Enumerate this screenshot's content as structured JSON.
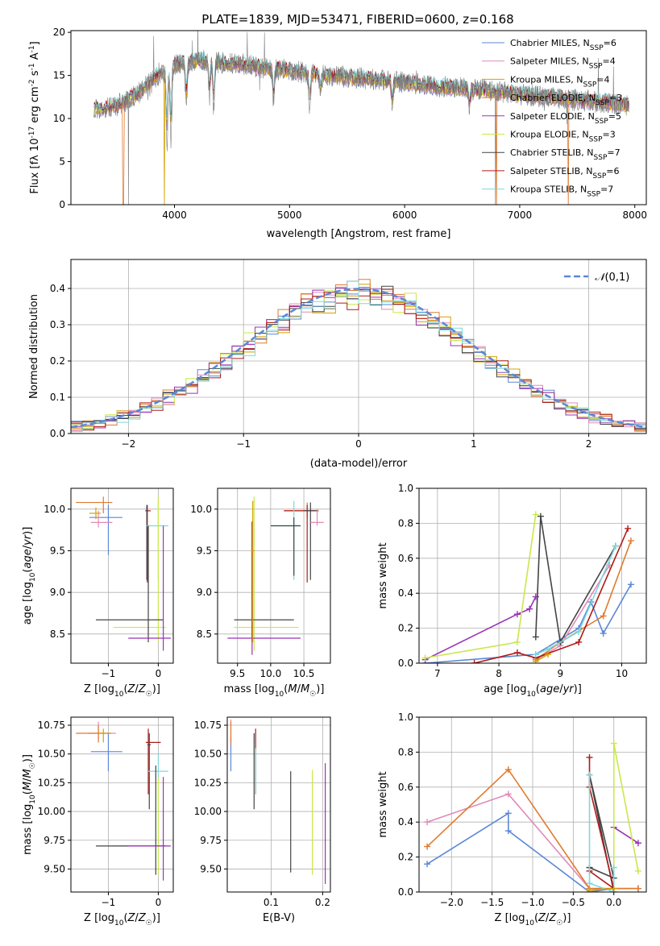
{
  "figure": {
    "title": "PLATE=1839, MJD=53471, FIBERID=0600, z=0.168"
  },
  "colors": {
    "chabrier_miles": "#5b87d6",
    "salpeter_miles": "#e08ab8",
    "kroupa_miles": "#d4a100",
    "chabrier_elodie": "#e07a2e",
    "salpeter_elodie": "#9a32b8",
    "kroupa_elodie": "#c8e84a",
    "chabrier_stelib": "#444444",
    "salpeter_stelib": "#b01a1a",
    "kroupa_stelib": "#7ed8dc",
    "data": "#808080",
    "gauss": "#5b87d6",
    "grid": "#b0b0b0"
  },
  "chart_data": [
    {
      "type": "line",
      "panel": "spectrum",
      "xlabel": "wavelength [Angstrom, rest frame]",
      "ylabel": "Flux [f_λ 10^-17 erg cm^-2 s^-1 A^-1]",
      "xlim": [
        3100,
        8100
      ],
      "ylim": [
        0,
        20.2
      ],
      "xticks": [
        4000,
        5000,
        6000,
        7000,
        8000
      ],
      "yticks": [
        0,
        5,
        10,
        15,
        20
      ],
      "legend": {
        "placement": "top-right",
        "entries": [
          "Chabrier MILES, N_SSP=6",
          "Salpeter MILES, N_SSP=4",
          "Kroupa MILES, N_SSP=4",
          "Chabrier ELODIE, N_SSP=3",
          "Salpeter ELODIE, N_SSP=5",
          "Kroupa ELODIE, N_SSP=3",
          "Chabrier STELIB, N_SSP=7",
          "Salpeter STELIB, N_SSP=6",
          "Kroupa STELIB, N_SSP=7"
        ]
      },
      "continuum": {
        "x": [
          3300,
          3500,
          3700,
          3850,
          4000,
          4200,
          4400,
          4600,
          4800,
          5000,
          5200,
          5500,
          5800,
          6000,
          6200,
          6500,
          6800,
          7000,
          7300,
          7600,
          7950
        ],
        "y": [
          11,
          11.5,
          13,
          15,
          16.2,
          16.8,
          16.5,
          16.3,
          15.8,
          15.6,
          15.2,
          14.8,
          14.5,
          14.2,
          13.8,
          13.5,
          13.1,
          12.8,
          12.4,
          12.0,
          11.5
        ]
      },
      "absorption_lines": [
        {
          "x": 3934,
          "depth": 9.0
        },
        {
          "x": 3969,
          "depth": 8.5
        },
        {
          "x": 4102,
          "depth": 5.0
        },
        {
          "x": 4304,
          "depth": 4.0
        },
        {
          "x": 4341,
          "depth": 5.5
        },
        {
          "x": 4861,
          "depth": 3.5
        },
        {
          "x": 5175,
          "depth": 4.0
        },
        {
          "x": 5270,
          "depth": 2.0
        },
        {
          "x": 5893,
          "depth": 3.0
        },
        {
          "x": 6563,
          "depth": 2.0
        }
      ],
      "dropouts": [
        {
          "x": 3555,
          "series": "chabrier_elodie"
        },
        {
          "x": 3600,
          "series": "data"
        },
        {
          "x": 3910,
          "series": "kroupa_miles"
        },
        {
          "x": 6790,
          "series": "data"
        },
        {
          "x": 6800,
          "series": "chabrier_elodie"
        },
        {
          "x": 7420,
          "series": "chabrier_elodie"
        }
      ]
    },
    {
      "type": "line",
      "panel": "residuals",
      "xlabel": "(data-model)/error",
      "ylabel": "Normed distribution",
      "xlim": [
        -2.5,
        2.5
      ],
      "ylim": [
        0,
        0.48
      ],
      "xticks": [
        -2,
        -1,
        0,
        1,
        2
      ],
      "yticks": [
        0.0,
        0.1,
        0.2,
        0.3,
        0.4
      ],
      "grid": true,
      "legend": {
        "placement": "top-right",
        "entries": [
          "N(0,1)"
        ]
      },
      "gaussian": {
        "mean": 0,
        "sigma": 1,
        "style": "dashed"
      },
      "hist_bin_width": 0.1
    },
    {
      "type": "scatter",
      "panel": "age_vs_Z",
      "xlabel": "Z [log10(Z/Z_sun)]",
      "ylabel": "age [log10(age/yr)]",
      "xlim": [
        -1.75,
        0.3
      ],
      "ylim": [
        8.15,
        10.25
      ],
      "xticks": [
        -1,
        0
      ],
      "yticks": [
        8.5,
        9.0,
        9.5,
        10.0
      ],
      "grid": true,
      "points": [
        {
          "s": "chabrier_miles",
          "x": -1.0,
          "y": 9.9,
          "ex": [
            -1.38,
            -0.72
          ],
          "ey": [
            9.45,
            10.05
          ]
        },
        {
          "s": "salpeter_miles",
          "x": -1.2,
          "y": 9.84,
          "ex": [
            -1.35,
            -0.92
          ],
          "ey": [
            9.78,
            9.98
          ]
        },
        {
          "s": "chabrier_elodie",
          "x": -1.1,
          "y": 10.08,
          "ex": [
            -1.65,
            -0.92
          ],
          "ey": [
            9.95,
            10.15
          ]
        },
        {
          "s": "kroupa_miles",
          "x": -1.25,
          "y": 9.95,
          "ex": [
            -1.38,
            -1.15
          ],
          "ey": [
            9.88,
            10.02
          ]
        },
        {
          "s": "salpeter_stelib",
          "x": -0.22,
          "y": 9.98,
          "ex": [
            -0.25,
            -0.15
          ],
          "ey": [
            9.12,
            10.05
          ]
        },
        {
          "s": "chabrier_stelib",
          "x": -0.23,
          "y": 9.98,
          "ex": [
            -0.26,
            -0.2
          ],
          "ey": [
            9.15,
            10.05
          ]
        },
        {
          "s": "kroupa_stelib",
          "x": 0.0,
          "y": 9.8,
          "ex": [
            -0.25,
            0.2
          ],
          "ey": [
            9.15,
            10.1
          ]
        },
        {
          "s": "kroupa_elodie",
          "x": 0.0,
          "y": 8.58,
          "ex": [
            -0.9,
            0.15
          ],
          "ey": [
            8.4,
            10.15
          ]
        },
        {
          "s": "chabrier_stelib",
          "x": -0.2,
          "y": 8.67,
          "ex": [
            -1.25,
            0.1
          ],
          "ey": [
            8.4,
            9.8
          ]
        },
        {
          "s": "salpeter_elodie",
          "x": 0.1,
          "y": 8.45,
          "ex": [
            -0.6,
            0.25
          ],
          "ey": [
            8.3,
            9.8
          ]
        }
      ]
    },
    {
      "type": "scatter",
      "panel": "age_vs_mass",
      "xlabel": "mass [log10(M/M_sun)]",
      "ylabel": "",
      "xlim": [
        9.2,
        10.9
      ],
      "ylim": [
        8.15,
        10.25
      ],
      "xticks": [
        9.5,
        10.0,
        10.5
      ],
      "yticks": [
        8.5,
        9.0,
        9.5,
        10.0
      ],
      "grid": true,
      "points": [
        {
          "s": "chabrier_elodie",
          "x": 10.55,
          "y": 9.98,
          "ex": [
            10.2,
            10.72
          ],
          "ey": [
            9.9,
            10.08
          ]
        },
        {
          "s": "salpeter_stelib",
          "x": 10.55,
          "y": 9.98,
          "ex": [
            10.2,
            10.72
          ],
          "ey": [
            9.12,
            10.05
          ]
        },
        {
          "s": "chabrier_stelib",
          "x": 10.6,
          "y": 9.98,
          "ex": [
            10.5,
            10.7
          ],
          "ey": [
            9.15,
            10.08
          ]
        },
        {
          "s": "salpeter_miles",
          "x": 10.7,
          "y": 9.84,
          "ex": [
            10.6,
            10.8
          ],
          "ey": [
            9.8,
            10.0
          ]
        },
        {
          "s": "kroupa_stelib",
          "x": 10.35,
          "y": 9.8,
          "ex": [
            10.0,
            10.45
          ],
          "ey": [
            9.15,
            10.1
          ]
        },
        {
          "s": "chabrier_stelib",
          "x": 10.35,
          "y": 9.8,
          "ex": [
            10.0,
            10.45
          ],
          "ey": [
            9.2,
            9.9
          ]
        },
        {
          "s": "kroupa_elodie",
          "x": 9.75,
          "y": 8.58,
          "ex": [
            9.45,
            10.42
          ],
          "ey": [
            8.3,
            10.15
          ]
        },
        {
          "s": "chabrier_stelib",
          "x": 9.72,
          "y": 8.67,
          "ex": [
            9.45,
            10.35
          ],
          "ey": [
            8.4,
            9.85
          ]
        },
        {
          "s": "salpeter_elodie",
          "x": 9.72,
          "y": 8.45,
          "ex": [
            9.35,
            10.45
          ],
          "ey": [
            8.25,
            9.85
          ]
        },
        {
          "s": "kroupa_miles",
          "x": 9.73,
          "y": 9.5,
          "ex": [
            9.7,
            9.76
          ],
          "ey": [
            8.4,
            10.1
          ]
        }
      ]
    },
    {
      "type": "line",
      "panel": "massweight_vs_age",
      "xlabel": "age [log10(age/yr)]",
      "ylabel": "mass weight",
      "xlim": [
        6.7,
        10.4
      ],
      "ylim": [
        0,
        1.0
      ],
      "xticks": [
        7,
        8,
        9,
        10
      ],
      "yticks": [
        0.0,
        0.2,
        0.4,
        0.6,
        0.8,
        1.0
      ],
      "grid": true,
      "series": [
        {
          "s": "chabrier_miles",
          "x": [
            6.8,
            8.6,
            9.3,
            9.5,
            9.7,
            10.15
          ],
          "y": [
            0.0,
            0.05,
            0.2,
            0.35,
            0.17,
            0.45
          ]
        },
        {
          "s": "salpeter_miles",
          "x": [
            8.6,
            9.0,
            9.8
          ],
          "y": [
            0.02,
            0.1,
            0.56
          ]
        },
        {
          "s": "chabrier_elodie",
          "x": [
            8.6,
            9.0,
            9.7,
            10.15
          ],
          "y": [
            0.02,
            0.12,
            0.27,
            0.7
          ]
        },
        {
          "s": "salpeter_elodie",
          "x": [
            6.8,
            8.3,
            8.5,
            8.6
          ],
          "y": [
            0.02,
            0.28,
            0.31,
            0.38
          ]
        },
        {
          "s": "kroupa_elodie",
          "x": [
            6.8,
            8.3,
            8.6
          ],
          "y": [
            0.03,
            0.12,
            0.85
          ]
        },
        {
          "s": "chabrier_stelib",
          "x": [
            8.6,
            8.68,
            9.0,
            9.9
          ],
          "y": [
            0.15,
            0.84,
            0.12,
            0.67
          ]
        },
        {
          "s": "salpeter_stelib",
          "x": [
            7.6,
            8.3,
            8.6,
            9.3,
            10.1
          ],
          "y": [
            0.0,
            0.06,
            0.03,
            0.12,
            0.77
          ]
        },
        {
          "s": "kroupa_stelib",
          "x": [
            8.6,
            8.8,
            9.3,
            9.9
          ],
          "y": [
            0.05,
            0.08,
            0.18,
            0.67
          ]
        },
        {
          "s": "kroupa_miles",
          "x": [
            8.6,
            8.8
          ],
          "y": [
            0.01,
            0.05
          ]
        }
      ]
    },
    {
      "type": "scatter",
      "panel": "mass_vs_Z",
      "xlabel": "Z [log10(Z/Z_sun)]",
      "ylabel": "mass [log10(M/M_sun)]",
      "xlim": [
        -1.75,
        0.3
      ],
      "ylim": [
        9.3,
        10.82
      ],
      "xticks": [
        -1,
        0
      ],
      "yticks": [
        9.5,
        9.75,
        10.0,
        10.25,
        10.5,
        10.75
      ],
      "grid": true,
      "points": [
        {
          "s": "chabrier_miles",
          "x": -1.0,
          "y": 10.52,
          "ex": [
            -1.35,
            -0.72
          ],
          "ey": [
            10.35,
            10.68
          ]
        },
        {
          "s": "salpeter_miles",
          "x": -1.2,
          "y": 10.68,
          "ex": [
            -1.4,
            -0.85
          ],
          "ey": [
            10.62,
            10.78
          ]
        },
        {
          "s": "chabrier_elodie",
          "x": -1.2,
          "y": 10.68,
          "ex": [
            -1.65,
            -0.95
          ],
          "ey": [
            10.6,
            10.75
          ]
        },
        {
          "s": "kroupa_miles",
          "x": -1.1,
          "y": 10.68,
          "ex": [
            -1.2,
            -0.95
          ],
          "ey": [
            10.6,
            10.72
          ]
        },
        {
          "s": "salpeter_stelib",
          "x": -0.2,
          "y": 10.6,
          "ex": [
            -0.25,
            0.05
          ],
          "ey": [
            10.15,
            10.72
          ]
        },
        {
          "s": "chabrier_stelib",
          "x": -0.18,
          "y": 10.58,
          "ex": [
            -0.22,
            -0.15
          ],
          "ey": [
            10.02,
            10.68
          ]
        },
        {
          "s": "kroupa_stelib",
          "x": 0.0,
          "y": 10.35,
          "ex": [
            -0.2,
            0.2
          ],
          "ey": [
            10.0,
            10.5
          ]
        },
        {
          "s": "kroupa_elodie",
          "x": 0.0,
          "y": 9.7,
          "ex": [
            -0.9,
            0.15
          ],
          "ey": [
            9.45,
            10.3
          ]
        },
        {
          "s": "chabrier_stelib",
          "x": -0.05,
          "y": 9.7,
          "ex": [
            -1.25,
            0.15
          ],
          "ey": [
            9.45,
            10.4
          ]
        },
        {
          "s": "salpeter_elodie",
          "x": 0.1,
          "y": 9.7,
          "ex": [
            -0.6,
            0.25
          ],
          "ey": [
            9.4,
            10.3
          ]
        }
      ]
    },
    {
      "type": "scatter",
      "panel": "mass_vs_EBV",
      "xlabel": "E(B-V)",
      "ylabel": "",
      "xlim": [
        0.015,
        0.215
      ],
      "ylim": [
        9.3,
        10.82
      ],
      "xticks": [
        0.1,
        0.2
      ],
      "yticks": [
        9.5,
        9.75,
        10.0,
        10.25,
        10.5,
        10.75
      ],
      "grid": true,
      "points": [
        {
          "s": "chabrier_miles",
          "x": 0.022,
          "y": 10.5,
          "ey": [
            10.35,
            10.65
          ]
        },
        {
          "s": "salpeter_miles",
          "x": 0.022,
          "y": 10.68,
          "ey": [
            10.6,
            10.8
          ]
        },
        {
          "s": "chabrier_elodie",
          "x": 0.022,
          "y": 10.68,
          "ey": [
            10.58,
            10.78
          ]
        },
        {
          "s": "chabrier_stelib",
          "x": 0.067,
          "y": 10.55,
          "ey": [
            10.02,
            10.68
          ]
        },
        {
          "s": "salpeter_stelib",
          "x": 0.07,
          "y": 10.55,
          "ey": [
            10.15,
            10.72
          ]
        },
        {
          "s": "kroupa_stelib",
          "x": 0.07,
          "y": 10.35,
          "ey": [
            10.15,
            10.55
          ]
        },
        {
          "s": "chabrier_stelib",
          "x": 0.138,
          "y": 9.9,
          "ey": [
            9.47,
            10.35
          ]
        },
        {
          "s": "kroupa_elodie",
          "x": 0.18,
          "y": 9.9,
          "ey": [
            9.45,
            10.36
          ]
        },
        {
          "s": "salpeter_elodie",
          "x": 0.205,
          "y": 9.9,
          "ey": [
            9.37,
            10.42
          ]
        }
      ]
    },
    {
      "type": "line",
      "panel": "massweight_vs_Z",
      "xlabel": "Z [log10(Z/Z_sun)]",
      "ylabel": "mass weight",
      "xlim": [
        -2.4,
        0.4
      ],
      "ylim": [
        0,
        1.0
      ],
      "xticks": [
        -2.0,
        -1.5,
        -1.0,
        -0.5,
        0.0
      ],
      "yticks": [
        0.0,
        0.2,
        0.4,
        0.6,
        0.8,
        1.0
      ],
      "grid": true,
      "series": [
        {
          "s": "chabrier_miles",
          "x": [
            -2.3,
            -1.3,
            -1.3,
            -0.3,
            0.0,
            0.3
          ],
          "y": [
            0.16,
            0.45,
            0.35,
            0.0,
            0.02,
            0.02
          ]
        },
        {
          "s": "salpeter_miles",
          "x": [
            -2.3,
            -1.3,
            -0.3,
            0.0
          ],
          "y": [
            0.4,
            0.56,
            0.02,
            0.02
          ]
        },
        {
          "s": "chabrier_elodie",
          "x": [
            -2.3,
            -1.3,
            -0.3,
            0.0,
            0.3
          ],
          "y": [
            0.26,
            0.7,
            0.02,
            0.02,
            0.02
          ]
        },
        {
          "s": "salpeter_elodie",
          "x": [
            0.0,
            0.3
          ],
          "y": [
            0.37,
            0.28
          ]
        },
        {
          "s": "kroupa_elodie",
          "x": [
            0.0,
            0.0,
            0.3
          ],
          "y": [
            0.02,
            0.85,
            0.12
          ]
        },
        {
          "s": "chabrier_stelib",
          "x": [
            -0.3,
            0.0,
            -0.3,
            0.0
          ],
          "y": [
            0.14,
            0.08,
            0.67,
            0.0
          ]
        },
        {
          "s": "salpeter_stelib",
          "x": [
            -0.3,
            -0.3,
            0.0,
            -0.3
          ],
          "y": [
            0.77,
            0.6,
            0.02,
            0.12
          ]
        },
        {
          "s": "kroupa_stelib",
          "x": [
            -0.3,
            -0.3,
            0.0,
            0.0
          ],
          "y": [
            0.67,
            0.05,
            0.0,
            0.14
          ]
        },
        {
          "s": "kroupa_miles",
          "x": [
            -0.3,
            0.0
          ],
          "y": [
            0.01,
            0.02
          ]
        }
      ]
    }
  ]
}
